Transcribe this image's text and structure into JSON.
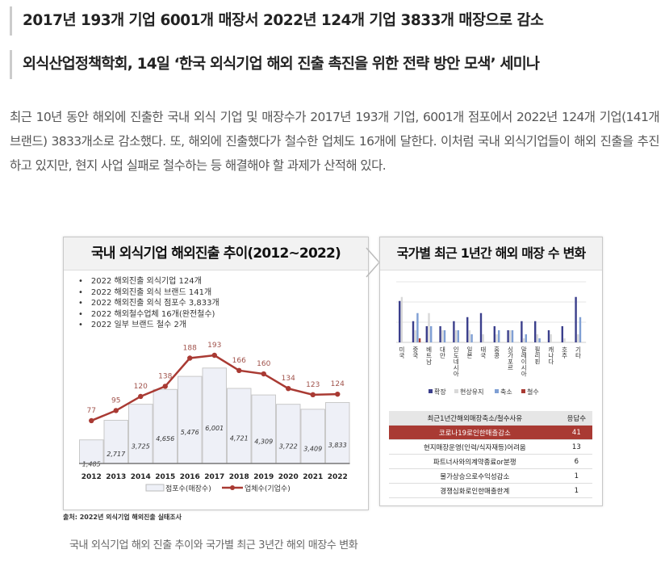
{
  "article": {
    "subtitle1": "2017년 193개 기업 6001개 매장서 2022년 124개 기업 3833개 매장으로 감소",
    "subtitle2": "외식산업정책학회, 14일 ‘한국 외식기업 해외 진출 촉진을 위한 전략 방안 모색’ 세미나",
    "body": "최근 10년 동안 해외에 진출한 국내 외식 기업 및 매장수가 2017년 193개 기업, 6001개 점포에서 2022년 124개 기업(141개 브랜드) 3833개소로 감소했다. 또, 해외에 진출했다가 철수한 업체도 16개에 달한다. 이처럼 국내 외식기업들이 해외 진출을 추진하고 있지만, 현지 사업 실패로 철수하는 등 해결해야 할 과제가 산적해 있다.",
    "caption": "국내 외식기업 해외 진출 추이와 국가별 최근 3년간 해외 매장수 변화",
    "source": "출처: 2022년 외식기업 해외진출 실태조사"
  },
  "chart_data": [
    {
      "type": "bar",
      "title": "국내 외식기업 해외진출 추이(2012~2022)",
      "bullets": [
        "2022 해외진출 외식기업 124개",
        "2022 해외진출 외식 브랜드 141개",
        "2022 해외진출 외식 점포수 3,833개",
        "2022 해외철수업체 16개(완전철수)",
        "2022 일부 브랜드 철수 2개"
      ],
      "categories": [
        "2012",
        "2013",
        "2014",
        "2015",
        "2016",
        "2017",
        "2018",
        "2019",
        "2020",
        "2021",
        "2022"
      ],
      "series": [
        {
          "name": "점포수(매장수)",
          "type": "bar",
          "values": [
            1485,
            2717,
            3725,
            4656,
            5476,
            6001,
            4721,
            4309,
            3722,
            3409,
            3833
          ],
          "labels": [
            "1,485",
            "2,717",
            "3,725",
            "4,656",
            "5,476",
            "6,001",
            "4,721",
            "4,309",
            "3,722",
            "3,409",
            "3,833"
          ],
          "color": "#eef0f7"
        },
        {
          "name": "업체수(기업수)",
          "type": "line",
          "values": [
            77,
            95,
            120,
            138,
            188,
            193,
            166,
            160,
            134,
            123,
            124
          ],
          "color": "#a93a33"
        }
      ]
    },
    {
      "type": "bar",
      "title": "국가별 최근 1년간 해외 매장 수 변화",
      "categories": [
        "미국",
        "중국",
        "베트남",
        "대만",
        "인도네시아",
        "일본",
        "태국",
        "홍콩",
        "싱가포르",
        "말레이시아",
        "필리핀",
        "캐나다",
        "호주",
        "기타"
      ],
      "series": [
        {
          "name": "확장",
          "color": "#3b3f8c",
          "values": [
            4.1,
            2.1,
            1.6,
            1.6,
            2.1,
            2.5,
            2.9,
            1.6,
            1.2,
            2.1,
            2.1,
            1.2,
            1.6,
            4.5
          ]
        },
        {
          "name": "현상유지",
          "color": "#d9d9d9",
          "values": [
            4.5,
            1.2,
            2.9,
            1.2,
            1.2,
            1.2,
            0.8,
            0.8,
            1.2,
            0.4,
            0.8,
            0.8,
            0.4,
            0.8
          ]
        },
        {
          "name": "축소",
          "color": "#7f9fd4",
          "values": [
            0,
            2.9,
            1.6,
            1.2,
            1.2,
            0.8,
            0,
            1.2,
            1.2,
            0.8,
            0.4,
            0,
            0,
            2.5
          ]
        },
        {
          "name": "철수",
          "color": "#a93a33",
          "values": [
            0,
            0.4,
            0,
            0,
            0,
            0,
            0,
            0,
            0,
            0,
            0,
            0,
            0,
            0
          ]
        }
      ],
      "ylim": [
        0,
        6
      ]
    },
    {
      "type": "table",
      "headers": [
        "최근1년간해외매장축소/철수사유",
        "응답수"
      ],
      "rows": [
        [
          "코로나19로인한매출감소",
          "41"
        ],
        [
          "현지매장운영(인력/식자재등)어려움",
          "13"
        ],
        [
          "파트너사와의계약종료or분쟁",
          "6"
        ],
        [
          "물가상승으로수익성감소",
          "1"
        ],
        [
          "경쟁심화로인한매출한계",
          "1"
        ]
      ]
    }
  ]
}
